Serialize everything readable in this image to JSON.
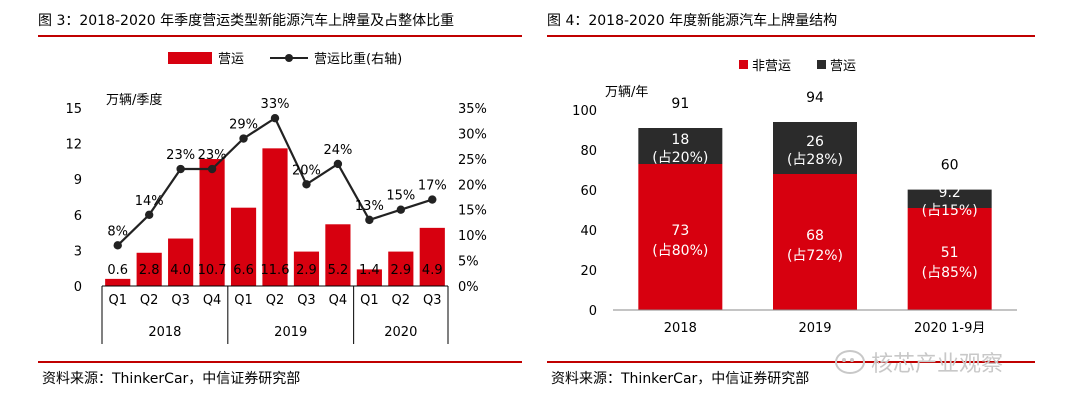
{
  "left": {
    "title": "图 3：2018-2020 年季度营运类型新能源汽车上牌量及占整体比重",
    "source": "资料来源：ThinkerCar，中信证券研究部"
  },
  "right": {
    "title": "图 4：2018-2020 年度新能源汽车上牌量结构",
    "source": "资料来源：ThinkerCar，中信证券研究部"
  },
  "watermark": "核芯产业观察",
  "colors": {
    "red": "#d7000f",
    "dark": "#2b2b2b",
    "rule": "#c00000"
  },
  "chart_data": [
    {
      "type": "bar",
      "categories": [
        "Q1",
        "Q2",
        "Q3",
        "Q4",
        "Q1",
        "Q2",
        "Q3",
        "Q4",
        "Q1",
        "Q2",
        "Q3"
      ],
      "groups": [
        {
          "label": "2018",
          "count": 4
        },
        {
          "label": "2019",
          "count": 4
        },
        {
          "label": "2020",
          "count": 3
        }
      ],
      "series": [
        {
          "name": "营运",
          "kind": "bar",
          "color": "#d7000f",
          "values": [
            0.6,
            2.8,
            4.0,
            10.7,
            6.6,
            11.6,
            2.9,
            5.2,
            1.4,
            2.9,
            4.9
          ],
          "labels": [
            "0.6",
            "2.8",
            "4.0",
            "10.7",
            "6.6",
            "11.6",
            "2.9",
            "5.2",
            "1.4",
            "2.9",
            "4.9"
          ]
        },
        {
          "name": "营运比重(右轴)",
          "kind": "line",
          "axis": "right",
          "color": "#222222",
          "values": [
            8,
            14,
            23,
            23,
            29,
            33,
            20,
            24,
            13,
            15,
            17
          ],
          "labels": [
            "8%",
            "14%",
            "23%",
            "23%",
            "29%",
            "33%",
            "20%",
            "24%",
            "13%",
            "15%",
            "17%"
          ]
        }
      ],
      "ylabel": "万辆/季度",
      "ylim": [
        0,
        15
      ],
      "yticks": [
        0,
        3,
        6,
        9,
        12,
        15
      ],
      "y2lim": [
        0,
        35
      ],
      "y2ticks": [
        "0%",
        "5%",
        "10%",
        "15%",
        "20%",
        "25%",
        "30%",
        "35%"
      ],
      "legend": "top"
    },
    {
      "type": "bar",
      "stacked": true,
      "categories": [
        "2018",
        "2019",
        "2020 1-9月"
      ],
      "series": [
        {
          "name": "非营运",
          "color": "#d7000f",
          "values": [
            73,
            68,
            51
          ],
          "labels": [
            "73",
            "68",
            "51"
          ],
          "share": [
            "(占80%)",
            "(占72%)",
            "(占85%)"
          ]
        },
        {
          "name": "营运",
          "color": "#2b2b2b",
          "values": [
            18,
            26,
            9.2
          ],
          "labels": [
            "18",
            "26",
            "9.2"
          ],
          "share": [
            "(占20%)",
            "(占28%)",
            "(占15%)"
          ]
        }
      ],
      "totals": [
        "91",
        "94",
        "60"
      ],
      "ylabel": "万辆/年",
      "ylim": [
        0,
        100
      ],
      "yticks": [
        0,
        20,
        40,
        60,
        80,
        100
      ],
      "legend": "top"
    }
  ]
}
